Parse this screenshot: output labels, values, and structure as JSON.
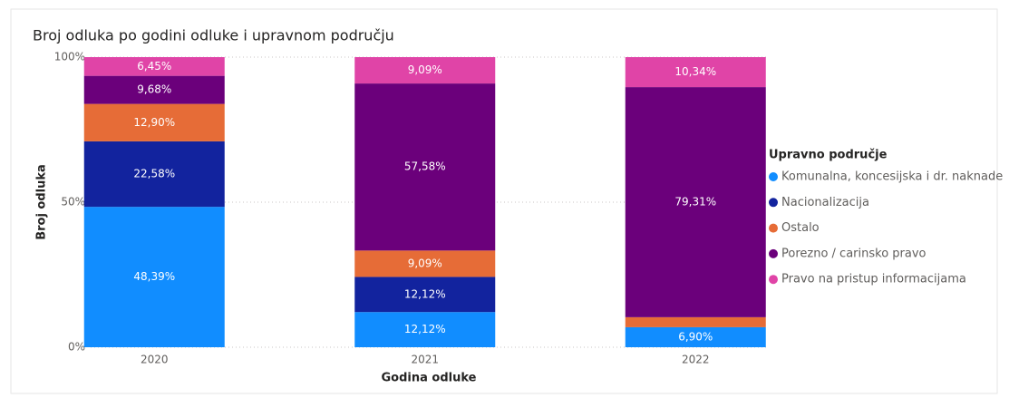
{
  "chart_data": {
    "type": "stacked_bar_100",
    "title": "Broj odluka po godini odluke i upravnom području",
    "x_label": "Godina odluke",
    "y_label": "Broj odluka",
    "legend_title": "Upravno područje",
    "legend_position": "right",
    "categories": [
      "2020",
      "2021",
      "2022"
    ],
    "ylim": [
      0,
      100
    ],
    "yticks": [
      {
        "value": 0,
        "label": "0%"
      },
      {
        "value": 50,
        "label": "50%"
      },
      {
        "value": 100,
        "label": "100%"
      }
    ],
    "grid": true,
    "series": [
      {
        "name": "Komunalna, koncesijska i dr. naknade",
        "color": "#118dff",
        "values": [
          48.39,
          12.12,
          6.9
        ],
        "value_labels": [
          "48,39%",
          "12,12%",
          "6,90%"
        ]
      },
      {
        "name": "Nacionalizacija",
        "color": "#12239e",
        "values": [
          22.58,
          12.12,
          null
        ],
        "value_labels": [
          "22,58%",
          "12,12%",
          null
        ]
      },
      {
        "name": "Ostalo",
        "color": "#e66c37",
        "values": [
          12.9,
          9.09,
          3.45
        ],
        "value_labels": [
          "12,90%",
          "9,09%",
          null
        ]
      },
      {
        "name": "Porezno / carinsko pravo",
        "color": "#6b007b",
        "values": [
          9.68,
          57.58,
          79.31
        ],
        "value_labels": [
          "9,68%",
          "57,58%",
          "79,31%"
        ]
      },
      {
        "name": "Pravo na pristup informacijama",
        "color": "#e044a7",
        "values": [
          6.45,
          9.09,
          10.34
        ],
        "value_labels": [
          "6,45%",
          "9,09%",
          "10,34%"
        ]
      }
    ]
  }
}
